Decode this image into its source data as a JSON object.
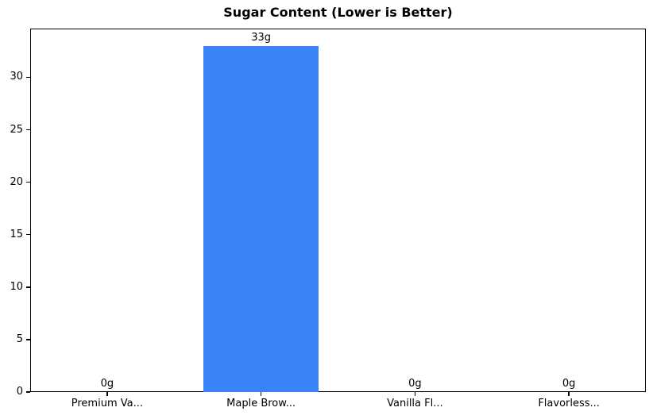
{
  "chart_data": {
    "type": "bar",
    "title": "Sugar Content (Lower is Better)",
    "categories": [
      "Premium Va...",
      "Maple Brow...",
      "Vanilla Fl...",
      "Flavorless..."
    ],
    "values": [
      0,
      33,
      0,
      0
    ],
    "bar_labels": [
      "0g",
      "33g",
      "0g",
      "0g"
    ],
    "yticks": [
      0,
      5,
      10,
      15,
      20,
      25,
      30
    ],
    "ylim": [
      0,
      34.65
    ],
    "xlabel": "",
    "ylabel": "",
    "grid": false,
    "legend": null,
    "colors": {
      "bar": "#3b82f6",
      "axis": "#000000",
      "text": "#000000",
      "background": "#ffffff"
    }
  }
}
